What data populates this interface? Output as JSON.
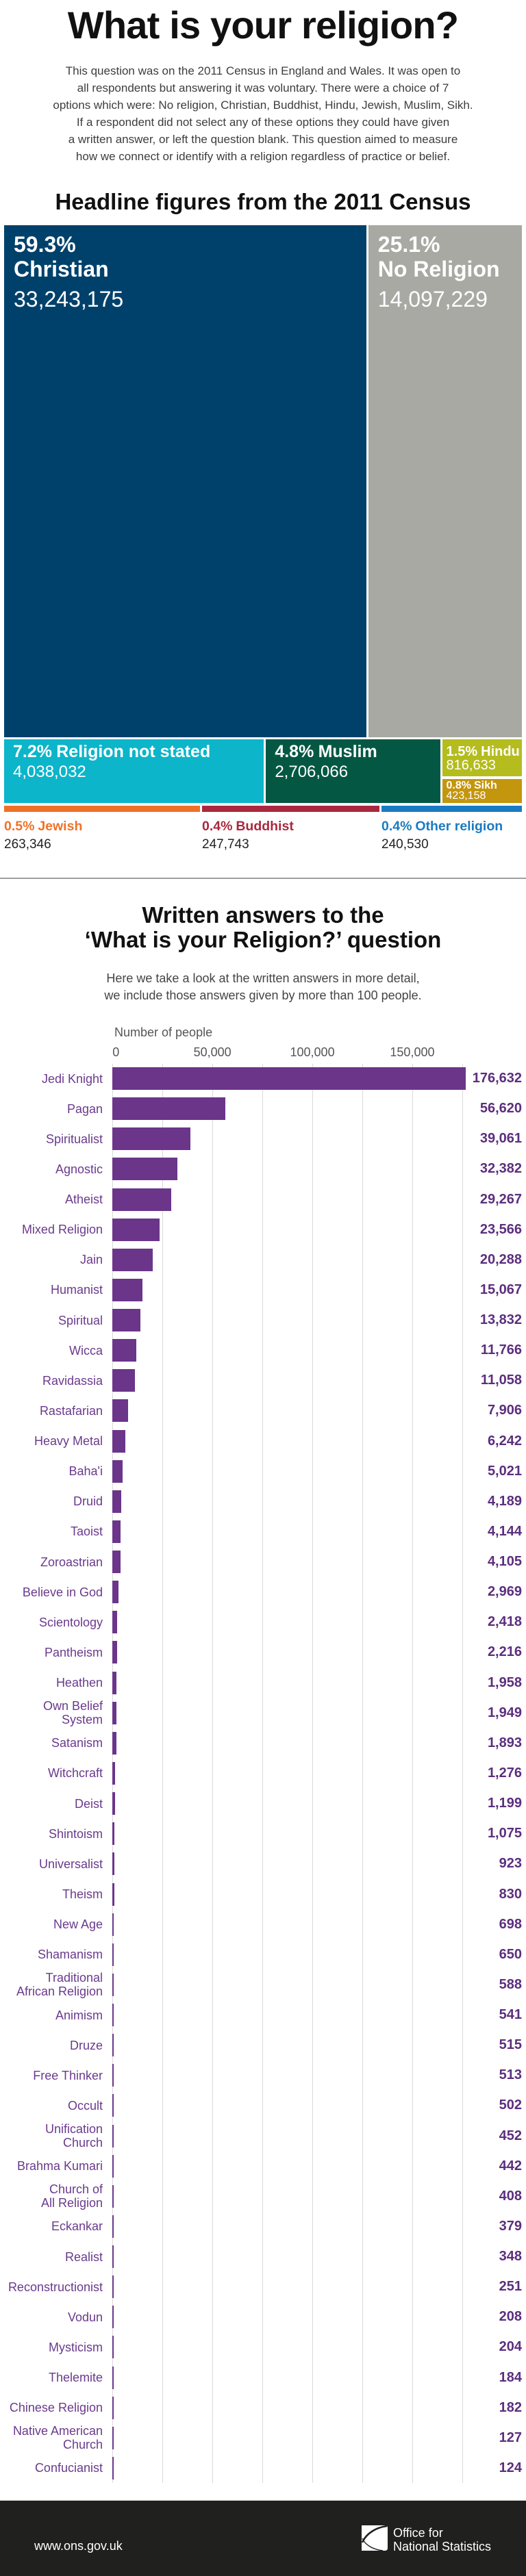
{
  "header": {
    "title": "What is your religion?",
    "intro_lines": [
      "This question was on the 2011 Census in England and Wales. It was open to",
      "all respondents but answering it was voluntary. There were a choice of 7",
      "options which were: No religion, Christian, Buddhist, Hindu, Jewish, Muslim, Sikh.",
      "If a respondent did not select any of these options they could have given",
      "a written answer, or left the question blank. This question aimed to measure",
      "how we connect or identify with a religion regardless of practice or belief."
    ]
  },
  "chart_data": [
    {
      "type": "treemap",
      "title": "Headline figures from the 2011 Census",
      "items": [
        {
          "label": "Christian",
          "percent": "59.3%",
          "value": 33243175,
          "value_label": "33,243,175",
          "color": "#00416b"
        },
        {
          "label": "No Religion",
          "percent": "25.1%",
          "value": 14097229,
          "value_label": "14,097,229",
          "color": "#a7a9a2"
        },
        {
          "label": "Religion not stated",
          "percent": "7.2%",
          "value": 4038032,
          "value_label": "4,038,032",
          "color": "#0cb5c9"
        },
        {
          "label": "Muslim",
          "percent": "4.8%",
          "value": 2706066,
          "value_label": "2,706,066",
          "color": "#045843"
        },
        {
          "label": "Hindu",
          "percent": "1.5%",
          "value": 816633,
          "value_label": "816,633",
          "color": "#b4bc1e"
        },
        {
          "label": "Sikh",
          "percent": "0.8%",
          "value": 423158,
          "value_label": "423,158",
          "color": "#c4960e"
        },
        {
          "label": "Jewish",
          "percent": "0.5%",
          "value": 263346,
          "value_label": "263,346",
          "color": "#ef7128"
        },
        {
          "label": "Buddhist",
          "percent": "0.4%",
          "value": 247743,
          "value_label": "247,743",
          "color": "#a9283e"
        },
        {
          "label": "Other religion",
          "percent": "0.4%",
          "value": 240530,
          "value_label": "240,530",
          "color": "#1a7bc2"
        }
      ]
    },
    {
      "type": "bar",
      "orientation": "horizontal",
      "title_lines": [
        "Written answers to the",
        "‘What is your Religion?’ question"
      ],
      "subtitle_lines": [
        "Here we take a look at the written answers in more detail,",
        "we include those answers given by more than 100 people."
      ],
      "xlabel": "Number of people",
      "ylabel": "",
      "xlim": [
        0,
        175000
      ],
      "grid": true,
      "grid_step": 25000,
      "xticks": [
        0,
        50000,
        100000,
        150000
      ],
      "xtick_labels": [
        "0",
        "50,000",
        "100,000",
        "150,000"
      ],
      "bar_color": "#6b358a",
      "categories": [
        "Jedi Knight",
        "Pagan",
        "Spiritualist",
        "Agnostic",
        "Atheist",
        "Mixed Religion",
        "Jain",
        "Humanist",
        "Spiritual",
        "Wicca",
        "Ravidassia",
        "Rastafarian",
        "Heavy Metal",
        "Baha'i",
        "Druid",
        "Taoist",
        "Zoroastrian",
        "Believe in God",
        "Scientology",
        "Pantheism",
        "Heathen",
        "Own Belief\nSystem",
        "Satanism",
        "Witchcraft",
        "Deist",
        "Shintoism",
        "Universalist",
        "Theism",
        "New Age",
        "Shamanism",
        "Traditional\nAfrican Religion",
        "Animism",
        "Druze",
        "Free Thinker",
        "Occult",
        "Unification\nChurch",
        "Brahma Kumari",
        "Church of\nAll Religion",
        "Eckankar",
        "Realist",
        "Reconstructionist",
        "Vodun",
        "Mysticism",
        "Thelemite",
        "Chinese Religion",
        "Native American\nChurch",
        "Confucianist"
      ],
      "values": [
        176632,
        56620,
        39061,
        32382,
        29267,
        23566,
        20288,
        15067,
        13832,
        11766,
        11058,
        7906,
        6242,
        5021,
        4189,
        4144,
        4105,
        2969,
        2418,
        2216,
        1958,
        1949,
        1893,
        1276,
        1199,
        1075,
        923,
        830,
        698,
        650,
        588,
        541,
        515,
        513,
        502,
        452,
        442,
        408,
        379,
        348,
        251,
        208,
        204,
        184,
        182,
        127,
        124
      ],
      "value_labels": [
        "176,632",
        "56,620",
        "39,061",
        "32,382",
        "29,267",
        "23,566",
        "20,288",
        "15,067",
        "13,832",
        "11,766",
        "11,058",
        "7,906",
        "6,242",
        "5,021",
        "4,189",
        "4,144",
        "4,105",
        "2,969",
        "2,418",
        "2,216",
        "1,958",
        "1,949",
        "1,893",
        "1,276",
        "1,199",
        "1,075",
        "923",
        "830",
        "698",
        "650",
        "588",
        "541",
        "515",
        "513",
        "502",
        "452",
        "442",
        "408",
        "379",
        "348",
        "251",
        "208",
        "204",
        "184",
        "182",
        "127",
        "124"
      ]
    }
  ],
  "footer": {
    "url": "www.ons.gov.uk",
    "logo_lines": [
      "Office for",
      "National Statistics"
    ]
  }
}
